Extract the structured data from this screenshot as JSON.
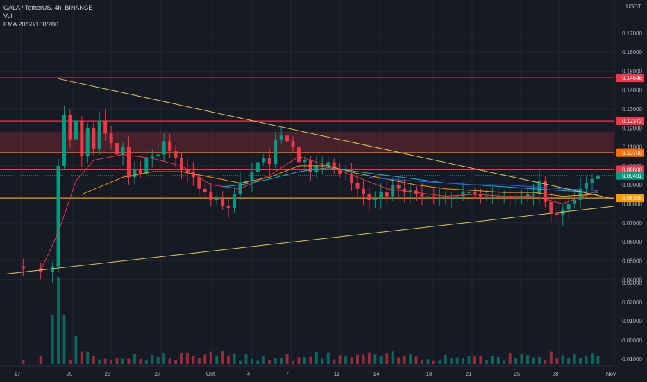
{
  "header": {
    "symbol": "GALA / TetherUS, 4h, BINANCE",
    "volume_label": "Vol",
    "ema_label": "EMA 20/50/100/200"
  },
  "price_axis": {
    "currency": "USDT",
    "ticks": [
      "0.17000",
      "0.16000",
      "0.15000",
      "0.14000",
      "0.13000",
      "0.12000",
      "0.11000",
      "0.10000",
      "0.09000",
      "0.08000",
      "0.07000",
      "0.06000",
      "0.05000",
      "0.04000",
      "0.03000",
      "0.02000",
      "0.01000",
      "-0.00000",
      "-0.01000"
    ],
    "badges": [
      {
        "value": "0.14646",
        "color": "#f23645"
      },
      {
        "value": "0.12372",
        "color": "#f23645"
      },
      {
        "value": "0.10700",
        "color": "#ff6d00"
      },
      {
        "value": "0.09800",
        "color": "#f23645"
      },
      {
        "value": "0.09491",
        "color": "#089981"
      },
      {
        "value": "0.08308",
        "color": "#ff9800"
      }
    ]
  },
  "time_axis": {
    "labels": [
      "17",
      "20",
      "23",
      "27",
      "Oct",
      "4",
      "7",
      "11",
      "14",
      "18",
      "21",
      "25",
      "28",
      "Nov"
    ]
  },
  "chart_data": {
    "type": "candlestick",
    "symbol": "GALA / TetherUS",
    "interval": "4h",
    "exchange": "BINANCE",
    "x_tick_labels": [
      "17",
      "20",
      "23",
      "27",
      "Oct",
      "4",
      "7",
      "11",
      "14",
      "18",
      "21",
      "25",
      "28",
      "Nov"
    ],
    "y_ticks": [
      0.17,
      0.16,
      0.15,
      0.14,
      0.13,
      0.12,
      0.11,
      0.1,
      0.09,
      0.08,
      0.07,
      0.06,
      0.05,
      0.04
    ],
    "ylim_price": [
      0.04,
      0.17
    ],
    "horizontal_levels": [
      {
        "price": 0.14646,
        "color": "#f23645"
      },
      {
        "price": 0.12372,
        "color": "#f23645"
      },
      {
        "price": 0.107,
        "color": "#ff6d00"
      },
      {
        "price": 0.098,
        "color": "#f23645"
      },
      {
        "price": 0.08308,
        "color": "#ff9800"
      }
    ],
    "resistance_zone": [
      0.107,
      0.118
    ],
    "last_price": 0.09491,
    "price_path": [
      [
        0,
        0.047
      ],
      [
        3,
        0.046
      ],
      [
        6,
        0.044
      ],
      [
        8,
        0.047
      ],
      [
        9,
        0.1
      ],
      [
        10,
        0.127
      ],
      [
        11,
        0.114
      ],
      [
        12,
        0.124
      ],
      [
        13,
        0.105
      ],
      [
        14,
        0.12
      ],
      [
        15,
        0.109
      ],
      [
        16,
        0.124
      ],
      [
        17,
        0.117
      ],
      [
        18,
        0.112
      ],
      [
        19,
        0.106
      ],
      [
        20,
        0.11
      ],
      [
        21,
        0.094
      ],
      [
        22,
        0.098
      ],
      [
        23,
        0.096
      ],
      [
        24,
        0.104
      ],
      [
        25,
        0.105
      ],
      [
        26,
        0.106
      ],
      [
        27,
        0.113
      ],
      [
        28,
        0.108
      ],
      [
        29,
        0.104
      ],
      [
        30,
        0.098
      ],
      [
        31,
        0.097
      ],
      [
        32,
        0.094
      ],
      [
        33,
        0.088
      ],
      [
        34,
        0.086
      ],
      [
        35,
        0.082
      ],
      [
        36,
        0.083
      ],
      [
        37,
        0.079
      ],
      [
        38,
        0.078
      ],
      [
        39,
        0.085
      ],
      [
        40,
        0.091
      ],
      [
        41,
        0.092
      ],
      [
        42,
        0.097
      ],
      [
        43,
        0.102
      ],
      [
        44,
        0.104
      ],
      [
        45,
        0.101
      ],
      [
        46,
        0.114
      ],
      [
        47,
        0.116
      ],
      [
        48,
        0.113
      ],
      [
        49,
        0.11
      ],
      [
        50,
        0.102
      ],
      [
        51,
        0.103
      ],
      [
        52,
        0.097
      ],
      [
        53,
        0.1
      ],
      [
        54,
        0.1
      ],
      [
        55,
        0.102
      ],
      [
        56,
        0.098
      ],
      [
        57,
        0.096
      ],
      [
        58,
        0.096
      ],
      [
        59,
        0.091
      ],
      [
        60,
        0.088
      ],
      [
        61,
        0.085
      ],
      [
        62,
        0.082
      ],
      [
        63,
        0.083
      ],
      [
        64,
        0.086
      ],
      [
        65,
        0.084
      ],
      [
        66,
        0.09
      ],
      [
        67,
        0.088
      ],
      [
        68,
        0.086
      ],
      [
        69,
        0.087
      ],
      [
        70,
        0.085
      ],
      [
        71,
        0.084
      ],
      [
        72,
        0.084
      ],
      [
        73,
        0.083
      ],
      [
        74,
        0.083
      ],
      [
        75,
        0.083
      ],
      [
        76,
        0.083
      ],
      [
        77,
        0.084
      ],
      [
        78,
        0.086
      ],
      [
        79,
        0.086
      ],
      [
        80,
        0.085
      ],
      [
        81,
        0.084
      ],
      [
        82,
        0.084
      ],
      [
        83,
        0.084
      ],
      [
        84,
        0.084
      ],
      [
        85,
        0.084
      ],
      [
        86,
        0.083
      ],
      [
        87,
        0.083
      ],
      [
        88,
        0.084
      ],
      [
        89,
        0.085
      ],
      [
        90,
        0.085
      ],
      [
        91,
        0.092
      ],
      [
        92,
        0.081
      ],
      [
        93,
        0.075
      ],
      [
        94,
        0.074
      ],
      [
        95,
        0.077
      ],
      [
        96,
        0.08
      ],
      [
        97,
        0.082
      ],
      [
        98,
        0.088
      ],
      [
        99,
        0.091
      ],
      [
        100,
        0.093
      ],
      [
        101,
        0.095
      ]
    ],
    "ema_series": [
      {
        "period": 20,
        "color": "#f23645",
        "points": [
          [
            6,
            0.045
          ],
          [
            9,
            0.065
          ],
          [
            12,
            0.092
          ],
          [
            15,
            0.103
          ],
          [
            20,
            0.106
          ],
          [
            25,
            0.104
          ],
          [
            30,
            0.1
          ],
          [
            35,
            0.09
          ],
          [
            40,
            0.088
          ],
          [
            45,
            0.095
          ],
          [
            50,
            0.105
          ],
          [
            55,
            0.1
          ],
          [
            60,
            0.094
          ],
          [
            65,
            0.088
          ],
          [
            70,
            0.086
          ],
          [
            75,
            0.084
          ],
          [
            80,
            0.085
          ],
          [
            85,
            0.084
          ],
          [
            90,
            0.084
          ],
          [
            95,
            0.08
          ],
          [
            101,
            0.087
          ]
        ]
      },
      {
        "period": 50,
        "color": "#ff9800",
        "points": [
          [
            13,
            0.085
          ],
          [
            20,
            0.094
          ],
          [
            25,
            0.097
          ],
          [
            30,
            0.097
          ],
          [
            35,
            0.094
          ],
          [
            40,
            0.091
          ],
          [
            45,
            0.094
          ],
          [
            50,
            0.1
          ],
          [
            55,
            0.1
          ],
          [
            60,
            0.096
          ],
          [
            65,
            0.093
          ],
          [
            70,
            0.09
          ],
          [
            75,
            0.088
          ],
          [
            80,
            0.087
          ],
          [
            85,
            0.086
          ],
          [
            90,
            0.086
          ],
          [
            95,
            0.084
          ],
          [
            101,
            0.085
          ]
        ]
      },
      {
        "period": 100,
        "color": "#00bcd4",
        "points": [
          [
            37,
            0.089
          ],
          [
            40,
            0.09
          ],
          [
            45,
            0.093
          ],
          [
            50,
            0.097
          ],
          [
            55,
            0.099
          ],
          [
            60,
            0.097
          ],
          [
            65,
            0.095
          ],
          [
            70,
            0.093
          ],
          [
            75,
            0.091
          ],
          [
            80,
            0.09
          ],
          [
            85,
            0.089
          ],
          [
            90,
            0.088
          ],
          [
            95,
            0.087
          ],
          [
            101,
            0.086
          ]
        ]
      },
      {
        "period": 200,
        "color": "#2962ff",
        "points": [
          [
            62,
            0.094
          ],
          [
            65,
            0.093
          ],
          [
            70,
            0.092
          ],
          [
            75,
            0.091
          ],
          [
            80,
            0.09
          ],
          [
            85,
            0.09
          ],
          [
            90,
            0.089
          ],
          [
            95,
            0.088
          ],
          [
            101,
            0.087
          ]
        ]
      }
    ],
    "trendlines": [
      {
        "from": [
          9,
          0.146
        ],
        "to": [
          101,
          0.084
        ]
      },
      {
        "from": [
          0,
          0.043
        ],
        "to": [
          101,
          0.078
        ]
      }
    ],
    "volume_bars_note_peak_index": 9
  },
  "colors": {
    "background": "#161a25",
    "up": "#089981",
    "down": "#f23645",
    "trendline": "#e6c84f",
    "text": "#d1d4dc",
    "axis_text": "#b2b5be",
    "grid": "#232733"
  }
}
